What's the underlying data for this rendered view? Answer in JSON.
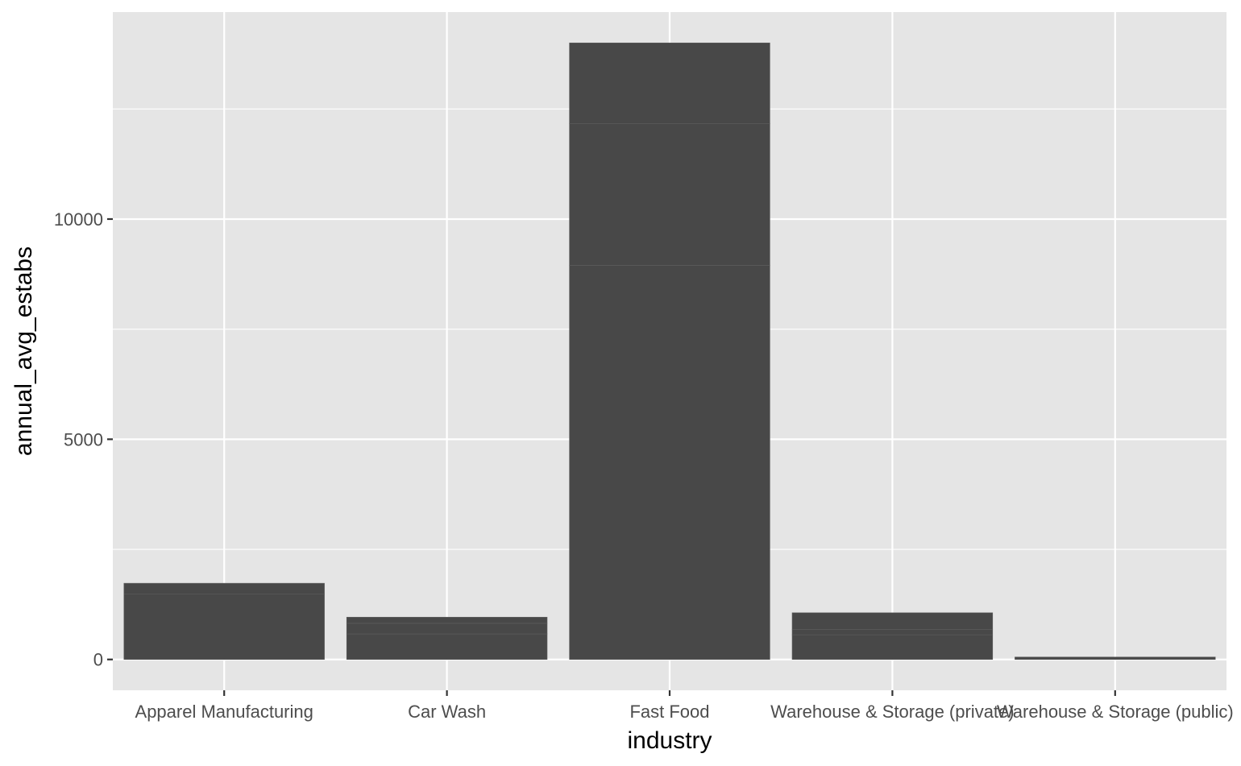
{
  "chart_data": {
    "type": "bar",
    "stacked": true,
    "xlabel": "industry",
    "ylabel": "annual_avg_estabs",
    "categories": [
      "Apparel Manufacturing",
      "Car Wash",
      "Fast Food",
      "Warehouse & Storage (private)",
      "Warehouse & Storage (public)"
    ],
    "segments": [
      [
        1490,
        240
      ],
      [
        580,
        240,
        140
      ],
      [
        8950,
        3220,
        1830
      ],
      [
        560,
        120,
        380
      ],
      [
        55
      ]
    ],
    "yticks": [
      0,
      5000,
      10000
    ],
    "ylim": [
      -700,
      14700
    ],
    "grid": true,
    "legend": "none",
    "colors": {
      "panel_background": "#e5e5e5",
      "grid": "#ffffff",
      "bar": "#484848",
      "bar_separator": "#5e5e5e",
      "tick": "#333333"
    }
  }
}
